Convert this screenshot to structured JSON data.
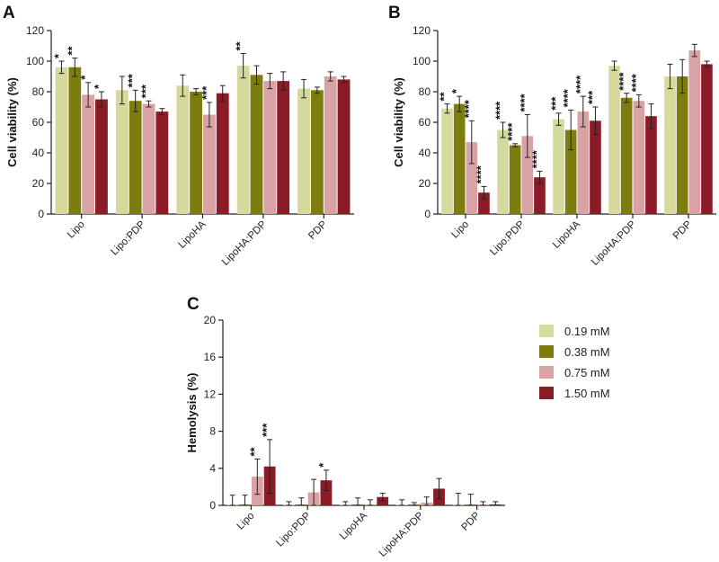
{
  "chart_data": [
    {
      "panel": "A",
      "type": "bar",
      "ylabel": "Cell viability (%)",
      "ylim": [
        0,
        120
      ],
      "yticks": [
        0,
        20,
        40,
        60,
        80,
        100,
        120
      ],
      "categories": [
        "Lipo",
        "Lipo:PDP",
        "LipoHA",
        "LipoHA:PDP",
        "PDP"
      ],
      "series": [
        {
          "name": "0.19 mM",
          "values": [
            96,
            81,
            84,
            97,
            82
          ],
          "errors": [
            4,
            9,
            7,
            8,
            6
          ],
          "stars": [
            "*",
            "",
            "",
            "**",
            ""
          ]
        },
        {
          "name": "0.38 mM",
          "values": [
            96,
            74,
            80,
            91,
            81
          ],
          "errors": [
            6,
            7,
            2,
            6,
            2
          ],
          "stars": [
            "**",
            "***",
            "",
            "",
            ""
          ]
        },
        {
          "name": "0.75 mM",
          "values": [
            78,
            72,
            65,
            87,
            90
          ],
          "errors": [
            8,
            2,
            8,
            5,
            3
          ],
          "stars": [
            "*",
            "***",
            "***",
            "",
            ""
          ]
        },
        {
          "name": "1.50 mM",
          "values": [
            75,
            67,
            79,
            87,
            88
          ],
          "errors": [
            5,
            2,
            5,
            6,
            2
          ],
          "stars": [
            "*",
            "",
            "",
            "",
            ""
          ]
        }
      ]
    },
    {
      "panel": "B",
      "type": "bar",
      "ylabel": "Cell viability (%)",
      "ylim": [
        0,
        120
      ],
      "yticks": [
        0,
        20,
        40,
        60,
        80,
        100,
        120
      ],
      "categories": [
        "Lipo",
        "Lipo:PDP",
        "LipoHA",
        "LipoHA:PDP",
        "PDP"
      ],
      "series": [
        {
          "name": "0.19 mM",
          "values": [
            69,
            55,
            62,
            97,
            90
          ],
          "errors": [
            3,
            5,
            4,
            3,
            8
          ],
          "stars": [
            "**",
            "****",
            "***",
            "",
            ""
          ]
        },
        {
          "name": "0.38 mM",
          "values": [
            72,
            45,
            55,
            76,
            90
          ],
          "errors": [
            5,
            1,
            13,
            3,
            11
          ],
          "stars": [
            "*",
            "****",
            "****",
            "****",
            ""
          ]
        },
        {
          "name": "0.75 mM",
          "values": [
            47,
            51,
            67,
            74,
            107
          ],
          "errors": [
            14,
            14,
            10,
            4,
            4
          ],
          "stars": [
            "****",
            "****",
            "****",
            "****",
            ""
          ]
        },
        {
          "name": "1.50 mM",
          "values": [
            14,
            24,
            61,
            64,
            98
          ],
          "errors": [
            4,
            4,
            9,
            8,
            2
          ],
          "stars": [
            "****",
            "****",
            "***",
            "",
            ""
          ]
        }
      ]
    },
    {
      "panel": "C",
      "type": "bar",
      "ylabel": "Hemolysis (%)",
      "ylim": [
        0,
        20
      ],
      "yticks": [
        0,
        4,
        8,
        12,
        16,
        20
      ],
      "categories": [
        "Lipo",
        "Lipo:PDP",
        "LipoHA",
        "LipoHA:PDP",
        "PDP"
      ],
      "series": [
        {
          "name": "0.19 mM",
          "values": [
            0.1,
            0.1,
            0.1,
            0.1,
            0.1
          ],
          "errors": [
            1.0,
            0.3,
            0.3,
            0.5,
            1.2
          ],
          "stars": [
            "",
            "",
            "",
            "",
            ""
          ]
        },
        {
          "name": "0.38 mM",
          "values": [
            0.1,
            0.1,
            0.1,
            0.1,
            0.1
          ],
          "errors": [
            1.0,
            0.7,
            0.7,
            0.2,
            1.1
          ],
          "stars": [
            "",
            "",
            "",
            "",
            ""
          ]
        },
        {
          "name": "0.75 mM",
          "values": [
            3.1,
            1.4,
            0.1,
            0.3,
            0.1
          ],
          "errors": [
            1.9,
            1.4,
            0.5,
            0.6,
            0.3
          ],
          "stars": [
            "**",
            "",
            "",
            "",
            ""
          ]
        },
        {
          "name": "1.50 mM",
          "values": [
            4.2,
            2.7,
            0.9,
            1.8,
            0.1
          ],
          "errors": [
            2.9,
            1.1,
            0.4,
            1.1,
            0.3
          ],
          "stars": [
            "***",
            "*",
            "",
            "",
            ""
          ]
        }
      ]
    }
  ],
  "legend": [
    {
      "label": "0.19 mM",
      "color": "#d6d99c"
    },
    {
      "label": "0.38 mM",
      "color": "#7d7c0f"
    },
    {
      "label": "0.75 mM",
      "color": "#d9a3a5"
    },
    {
      "label": "1.50 mM",
      "color": "#8a1b27"
    }
  ]
}
